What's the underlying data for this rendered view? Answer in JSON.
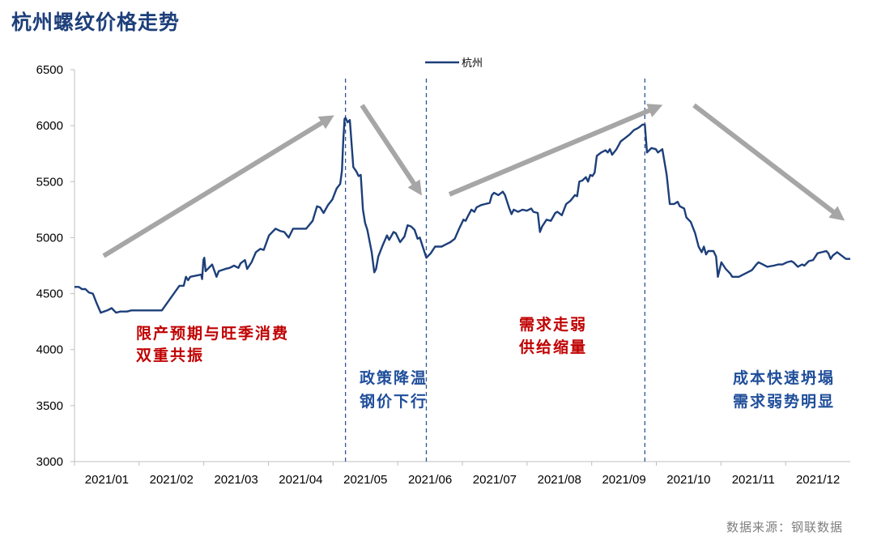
{
  "title": "杭州螺纹价格走势",
  "source": "数据来源：钢联数据",
  "colors": {
    "line": "#1d3f7a",
    "arrow": "#a6a6a6",
    "red": "#c00000",
    "blue": "#1f4e9a",
    "axis": "#bfbfbf"
  },
  "chart_data": {
    "type": "line",
    "title": "杭州螺纹价格走势",
    "xlabel": "",
    "ylabel": "",
    "ylim": [
      3000,
      6500
    ],
    "yticks": [
      "3000",
      "3500",
      "4000",
      "4500",
      "5000",
      "5500",
      "6000",
      "6500"
    ],
    "xticks": [
      "2021/01",
      "2021/02",
      "2021/03",
      "2021/04",
      "2021/05",
      "2021/06",
      "2021/07",
      "2021/08",
      "2021/09",
      "2021/10",
      "2021/11",
      "2021/12"
    ],
    "legend": "top-center",
    "grid": false,
    "series": [
      {
        "name": "杭州",
        "color": "#1d3f7a",
        "points": [
          [
            0.0,
            4560
          ],
          [
            0.1,
            4560
          ],
          [
            0.17,
            4540
          ],
          [
            0.25,
            4540
          ],
          [
            0.33,
            4510
          ],
          [
            0.42,
            4500
          ],
          [
            0.5,
            4420
          ],
          [
            0.6,
            4330
          ],
          [
            0.75,
            4350
          ],
          [
            0.85,
            4370
          ],
          [
            0.95,
            4330
          ],
          [
            1.05,
            4340
          ],
          [
            1.2,
            4340
          ],
          [
            1.3,
            4350
          ],
          [
            1.5,
            4350
          ],
          [
            1.8,
            4350
          ],
          [
            2.0,
            4350
          ],
          [
            2.4,
            4570
          ],
          [
            2.5,
            4570
          ],
          [
            2.55,
            4650
          ],
          [
            2.6,
            4620
          ],
          [
            2.65,
            4650
          ],
          [
            2.9,
            4670
          ],
          [
            2.92,
            4630
          ],
          [
            2.95,
            4800
          ],
          [
            2.97,
            4820
          ],
          [
            3.0,
            4700
          ],
          [
            3.05,
            4720
          ],
          [
            3.15,
            4760
          ],
          [
            3.25,
            4650
          ],
          [
            3.3,
            4700
          ],
          [
            3.45,
            4720
          ],
          [
            3.55,
            4730
          ],
          [
            3.65,
            4750
          ],
          [
            3.75,
            4730
          ],
          [
            3.8,
            4770
          ],
          [
            3.9,
            4800
          ],
          [
            3.95,
            4720
          ],
          [
            4.05,
            4780
          ],
          [
            4.15,
            4870
          ],
          [
            4.25,
            4900
          ],
          [
            4.33,
            4890
          ],
          [
            4.45,
            5020
          ],
          [
            4.6,
            5080
          ],
          [
            4.7,
            5060
          ],
          [
            4.8,
            5050
          ],
          [
            4.9,
            5000
          ],
          [
            5.0,
            5080
          ],
          [
            5.12,
            5080
          ],
          [
            5.3,
            5080
          ],
          [
            5.45,
            5150
          ],
          [
            5.55,
            5280
          ],
          [
            5.62,
            5270
          ],
          [
            5.7,
            5220
          ],
          [
            5.8,
            5290
          ],
          [
            5.9,
            5340
          ],
          [
            6.0,
            5440
          ],
          [
            6.08,
            5480
          ],
          [
            6.12,
            5600
          ],
          [
            6.15,
            5870
          ],
          [
            6.18,
            6060
          ],
          [
            6.2,
            6070
          ],
          [
            6.25,
            6030
          ],
          [
            6.3,
            6050
          ],
          [
            6.38,
            5630
          ],
          [
            6.45,
            5590
          ],
          [
            6.5,
            5550
          ],
          [
            6.55,
            5560
          ],
          [
            6.6,
            5250
          ],
          [
            6.65,
            5130
          ],
          [
            6.7,
            5070
          ],
          [
            6.8,
            4870
          ],
          [
            6.86,
            4690
          ],
          [
            6.9,
            4720
          ],
          [
            6.95,
            4830
          ],
          [
            7.05,
            4930
          ],
          [
            7.15,
            5020
          ],
          [
            7.2,
            4980
          ],
          [
            7.3,
            5050
          ],
          [
            7.35,
            5040
          ],
          [
            7.45,
            4960
          ],
          [
            7.55,
            5010
          ],
          [
            7.62,
            5110
          ],
          [
            7.7,
            5100
          ],
          [
            7.78,
            5070
          ],
          [
            7.85,
            4990
          ],
          [
            7.9,
            5000
          ],
          [
            8.0,
            4880
          ],
          [
            8.05,
            4820
          ],
          [
            8.15,
            4860
          ],
          [
            8.25,
            4920
          ],
          [
            8.4,
            4920
          ],
          [
            8.5,
            4940
          ],
          [
            8.6,
            4960
          ],
          [
            8.7,
            4990
          ],
          [
            8.8,
            5080
          ],
          [
            8.9,
            5160
          ],
          [
            8.95,
            5150
          ],
          [
            9.0,
            5190
          ],
          [
            9.08,
            5250
          ],
          [
            9.15,
            5230
          ],
          [
            9.2,
            5270
          ],
          [
            9.3,
            5290
          ],
          [
            9.4,
            5300
          ],
          [
            9.5,
            5310
          ],
          [
            9.55,
            5380
          ],
          [
            9.6,
            5400
          ],
          [
            9.7,
            5380
          ],
          [
            9.8,
            5410
          ],
          [
            9.85,
            5380
          ],
          [
            9.95,
            5260
          ],
          [
            10.0,
            5210
          ],
          [
            10.05,
            5250
          ],
          [
            10.15,
            5230
          ],
          [
            10.25,
            5250
          ],
          [
            10.35,
            5240
          ],
          [
            10.45,
            5260
          ],
          [
            10.5,
            5230
          ],
          [
            10.6,
            5220
          ],
          [
            10.65,
            5050
          ],
          [
            10.7,
            5100
          ],
          [
            10.8,
            5160
          ],
          [
            10.9,
            5150
          ],
          [
            11.0,
            5220
          ],
          [
            11.05,
            5230
          ],
          [
            11.15,
            5200
          ],
          [
            11.25,
            5300
          ],
          [
            11.35,
            5330
          ],
          [
            11.45,
            5380
          ],
          [
            11.5,
            5370
          ],
          [
            11.55,
            5500
          ],
          [
            11.62,
            5510
          ],
          [
            11.7,
            5540
          ],
          [
            11.75,
            5500
          ],
          [
            11.8,
            5560
          ],
          [
            11.85,
            5550
          ],
          [
            11.9,
            5580
          ],
          [
            11.95,
            5730
          ],
          [
            12.05,
            5760
          ],
          [
            12.15,
            5780
          ],
          [
            12.2,
            5760
          ],
          [
            12.25,
            5790
          ],
          [
            12.3,
            5740
          ],
          [
            12.4,
            5790
          ],
          [
            12.5,
            5860
          ],
          [
            12.6,
            5890
          ],
          [
            12.7,
            5920
          ],
          [
            12.8,
            5960
          ],
          [
            12.9,
            5980
          ],
          [
            13.0,
            6010
          ],
          [
            13.05,
            6010
          ],
          [
            13.1,
            5760
          ],
          [
            13.2,
            5800
          ],
          [
            13.3,
            5790
          ],
          [
            13.35,
            5760
          ],
          [
            13.45,
            5790
          ],
          [
            13.55,
            5560
          ],
          [
            13.62,
            5300
          ],
          [
            13.72,
            5300
          ],
          [
            13.8,
            5320
          ],
          [
            13.85,
            5280
          ],
          [
            13.95,
            5260
          ],
          [
            14.0,
            5180
          ],
          [
            14.1,
            5140
          ],
          [
            14.2,
            5040
          ],
          [
            14.28,
            4920
          ],
          [
            14.35,
            4870
          ],
          [
            14.4,
            4920
          ],
          [
            14.45,
            4850
          ],
          [
            14.5,
            4880
          ],
          [
            14.55,
            4880
          ],
          [
            14.62,
            4880
          ],
          [
            14.68,
            4830
          ],
          [
            14.72,
            4650
          ],
          [
            14.8,
            4780
          ],
          [
            14.9,
            4720
          ],
          [
            15.0,
            4680
          ],
          [
            15.05,
            4650
          ],
          [
            15.2,
            4650
          ],
          [
            15.3,
            4670
          ],
          [
            15.4,
            4690
          ],
          [
            15.5,
            4710
          ],
          [
            15.6,
            4760
          ],
          [
            15.65,
            4780
          ],
          [
            15.75,
            4760
          ],
          [
            15.85,
            4740
          ],
          [
            16.0,
            4750
          ],
          [
            16.1,
            4760
          ],
          [
            16.2,
            4760
          ],
          [
            16.3,
            4780
          ],
          [
            16.4,
            4790
          ],
          [
            16.45,
            4780
          ],
          [
            16.55,
            4740
          ],
          [
            16.65,
            4760
          ],
          [
            16.7,
            4750
          ],
          [
            16.8,
            4790
          ],
          [
            16.9,
            4800
          ],
          [
            17.0,
            4860
          ],
          [
            17.1,
            4870
          ],
          [
            17.2,
            4880
          ],
          [
            17.25,
            4860
          ],
          [
            17.3,
            4810
          ],
          [
            17.35,
            4840
          ],
          [
            17.45,
            4870
          ],
          [
            17.55,
            4840
          ],
          [
            17.65,
            4810
          ],
          [
            17.75,
            4810
          ]
        ]
      }
    ],
    "vlines": [
      6.2,
      8.05,
      13.05
    ],
    "annotations": [
      {
        "lines": [
          "限产预期与旺季消费",
          "双重共振"
        ],
        "color": "#c00000"
      },
      {
        "lines": [
          "政策降温",
          "钢价下行"
        ],
        "color": "#1f4e9a"
      },
      {
        "lines": [
          "需求走弱",
          "供给缩量"
        ],
        "color": "#c00000"
      },
      {
        "lines": [
          "成本快速坍塌",
          "需求弱势明显"
        ],
        "color": "#1f4e9a"
      }
    ]
  }
}
